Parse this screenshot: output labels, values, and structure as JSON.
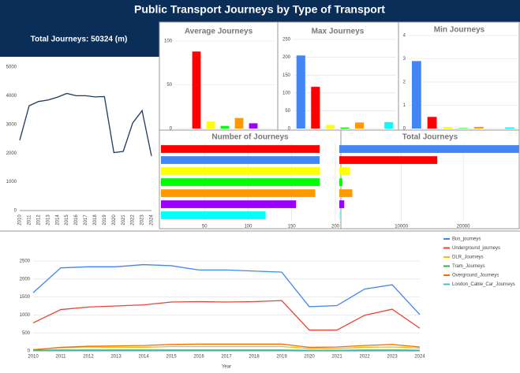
{
  "header": {
    "title": "Public Transport Journeys by Type of Transport",
    "kpi": "Total Journeys: 50324 (m)"
  },
  "chart_data": [
    {
      "type": "line",
      "categories": [
        "2010",
        "2011",
        "2012",
        "2013",
        "2014",
        "2015",
        "2016",
        "2017",
        "2018",
        "2019",
        "2020",
        "2021",
        "2022",
        "2023",
        "2024"
      ],
      "values": [
        2450,
        3650,
        3800,
        3850,
        3950,
        4080,
        4000,
        4000,
        3960,
        3970,
        2020,
        2060,
        3050,
        3480,
        1900
      ],
      "color": "#1f3b5a",
      "ylim": [
        0,
        5000
      ],
      "yticks": [
        0,
        1000,
        2000,
        3000,
        4000,
        5000
      ],
      "grid": false
    },
    {
      "type": "bar",
      "title": "Average Journeys",
      "colors": [
        "#4285f4",
        "#ff0000",
        "#ffff00",
        "#00ff00",
        "#ff9900",
        "#9900ff",
        "#00ffff"
      ],
      "values": [
        null,
        88,
        8,
        3,
        12,
        6,
        null
      ],
      "ylim": [
        0,
        100
      ],
      "yticks": [
        0,
        50,
        100
      ],
      "grid": true
    },
    {
      "type": "bar",
      "title": "Max Journeys",
      "colors": [
        "#4285f4",
        "#ff0000",
        "#ffff00",
        "#00ff00",
        "#ff9900",
        "#9900ff",
        "#00ffff"
      ],
      "values": [
        205,
        117,
        10,
        3,
        17,
        null,
        18
      ],
      "ylim": [
        0,
        250
      ],
      "yticks": [
        0,
        50,
        100,
        150,
        200,
        250
      ],
      "grid": true
    },
    {
      "type": "bar",
      "title": "Min Journeys",
      "colors": [
        "#4285f4",
        "#ff0000",
        "#ffff00",
        "#00ff00",
        "#ff9900",
        "#9900ff",
        "#00ffff"
      ],
      "values": [
        2.9,
        0.5,
        0.07,
        0.02,
        0.07,
        null,
        0.05
      ],
      "ylim": [
        0,
        4
      ],
      "yticks": [
        0,
        1,
        2,
        3,
        4
      ],
      "grid": true
    },
    {
      "type": "hbar",
      "title": "Number of Journeys",
      "colors": [
        "#ff0000",
        "#4285f4",
        "#ffff00",
        "#00ff00",
        "#ff9900",
        "#9900ff",
        "#00ffff"
      ],
      "values": [
        182,
        182,
        182,
        182,
        177,
        155,
        120
      ],
      "xlim": [
        0,
        200
      ],
      "xticks": [
        50,
        100,
        150,
        200
      ],
      "grid": true
    },
    {
      "type": "hbar",
      "title": "Total Journeys",
      "colors": [
        "#4285f4",
        "#ff0000",
        "#ffff00",
        "#00ff00",
        "#ff9900",
        "#9900ff",
        "#00ffff"
      ],
      "values": [
        29000,
        15800,
        1700,
        500,
        2100,
        800,
        50
      ],
      "xlim": [
        0,
        28000
      ],
      "xticks": [
        10000,
        20000
      ],
      "grid": true
    },
    {
      "type": "multiline",
      "xlabel": "Year",
      "categories": [
        "2010",
        "2011",
        "2012",
        "2013",
        "2014",
        "2015",
        "2016",
        "2017",
        "2018",
        "2019",
        "2020",
        "2021",
        "2022",
        "2023",
        "2024"
      ],
      "series": [
        {
          "name": "Bus_journeys",
          "color": "#4285f4",
          "values": [
            1620,
            2310,
            2340,
            2340,
            2400,
            2370,
            2250,
            2250,
            2220,
            2190,
            1230,
            1260,
            1720,
            1840,
            1010
          ]
        },
        {
          "name": "Underground_journeys",
          "color": "#ea4335",
          "values": [
            780,
            1150,
            1220,
            1250,
            1280,
            1360,
            1370,
            1360,
            1370,
            1400,
            580,
            580,
            990,
            1160,
            630
          ]
        },
        {
          "name": "DLR_Journeys",
          "color": "#fbbc04",
          "values": [
            40,
            90,
            110,
            100,
            100,
            120,
            120,
            120,
            120,
            120,
            70,
            70,
            100,
            110,
            80
          ]
        },
        {
          "name": "Tram_Journeys",
          "color": "#34a853",
          "values": [
            20,
            25,
            25,
            25,
            25,
            25,
            25,
            25,
            25,
            25,
            15,
            15,
            25,
            25,
            20
          ]
        },
        {
          "name": "Overground_Journeys",
          "color": "#ff6d01",
          "values": [
            30,
            100,
            130,
            140,
            150,
            180,
            190,
            190,
            190,
            190,
            100,
            110,
            150,
            180,
            110
          ]
        },
        {
          "name": "London_Cable_Car_Journeys",
          "color": "#46bdc6",
          "values": [
            2,
            2,
            2,
            2,
            2,
            2,
            2,
            2,
            2,
            2,
            1,
            1,
            1,
            2,
            1
          ]
        }
      ],
      "ylim": [
        0,
        2500
      ],
      "yticks": [
        0,
        500,
        1000,
        1500,
        2000,
        2500
      ],
      "grid": true
    }
  ]
}
